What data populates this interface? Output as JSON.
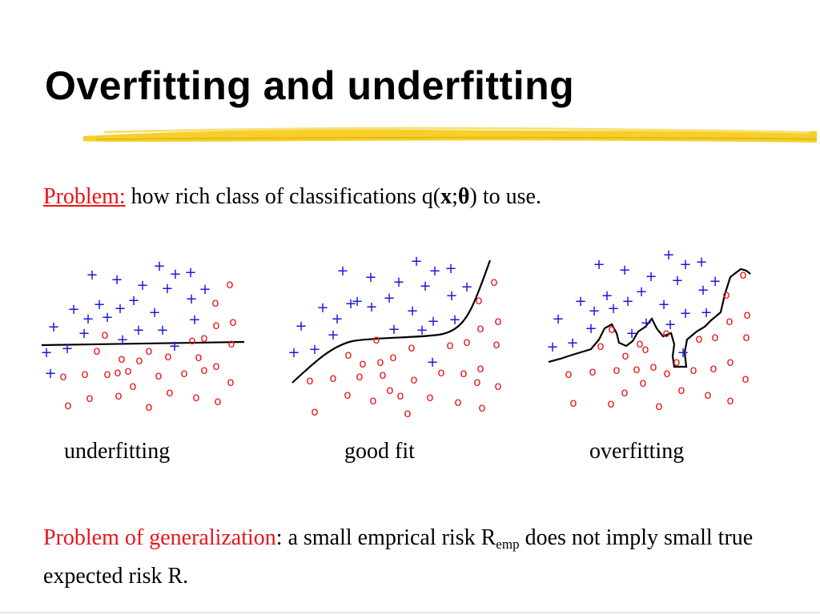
{
  "title": "Overfitting and underfitting",
  "problem": {
    "label": "Problem:",
    "text_before": " how rich class of classifications q(",
    "var_x": "x",
    "separator": ";",
    "var_theta": "θ",
    "text_after": ") to use."
  },
  "diagrams": {
    "captions": [
      "underfitting",
      "good fit",
      "overfitting"
    ],
    "plus_color": "#1a1adb",
    "circle_color": "#e8141b",
    "plus_symbol": "+",
    "circle_symbol": "o"
  },
  "generalization": {
    "label": "Problem of generalization",
    "text_1": ": a small emprical risk R",
    "sub": "emp",
    "text_2": " does not imply small true expected risk R."
  },
  "colors": {
    "accent_red": "#e8141b",
    "highlighter": "#f6cf2a"
  }
}
